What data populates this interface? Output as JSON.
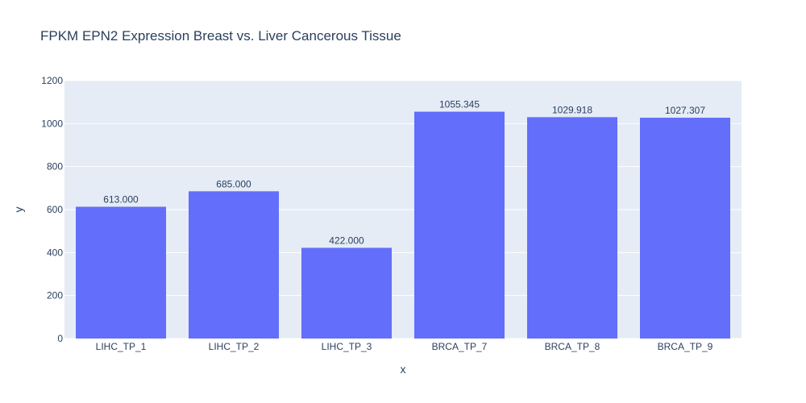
{
  "chart_data": {
    "type": "bar",
    "title": "FPKM EPN2 Expression Breast vs. Liver Cancerous Tissue",
    "xlabel": "x",
    "ylabel": "y",
    "categories": [
      "LIHC_TP_1",
      "LIHC_TP_2",
      "LIHC_TP_3",
      "BRCA_TP_7",
      "BRCA_TP_8",
      "BRCA_TP_9"
    ],
    "values": [
      613.0,
      685.0,
      422.0,
      1055.345,
      1029.918,
      1027.307
    ],
    "data_labels": [
      "613.000",
      "685.000",
      "422.000",
      "1055.345",
      "1029.918",
      "1027.307"
    ],
    "ylim": [
      0,
      1200
    ],
    "yticks": [
      0,
      200,
      400,
      600,
      800,
      1000,
      1200
    ],
    "grid": true,
    "colors": {
      "bar": "#636efa",
      "plot_background": "#e5ecf6",
      "grid": "#ffffff",
      "text": "#2a3f5f"
    }
  }
}
